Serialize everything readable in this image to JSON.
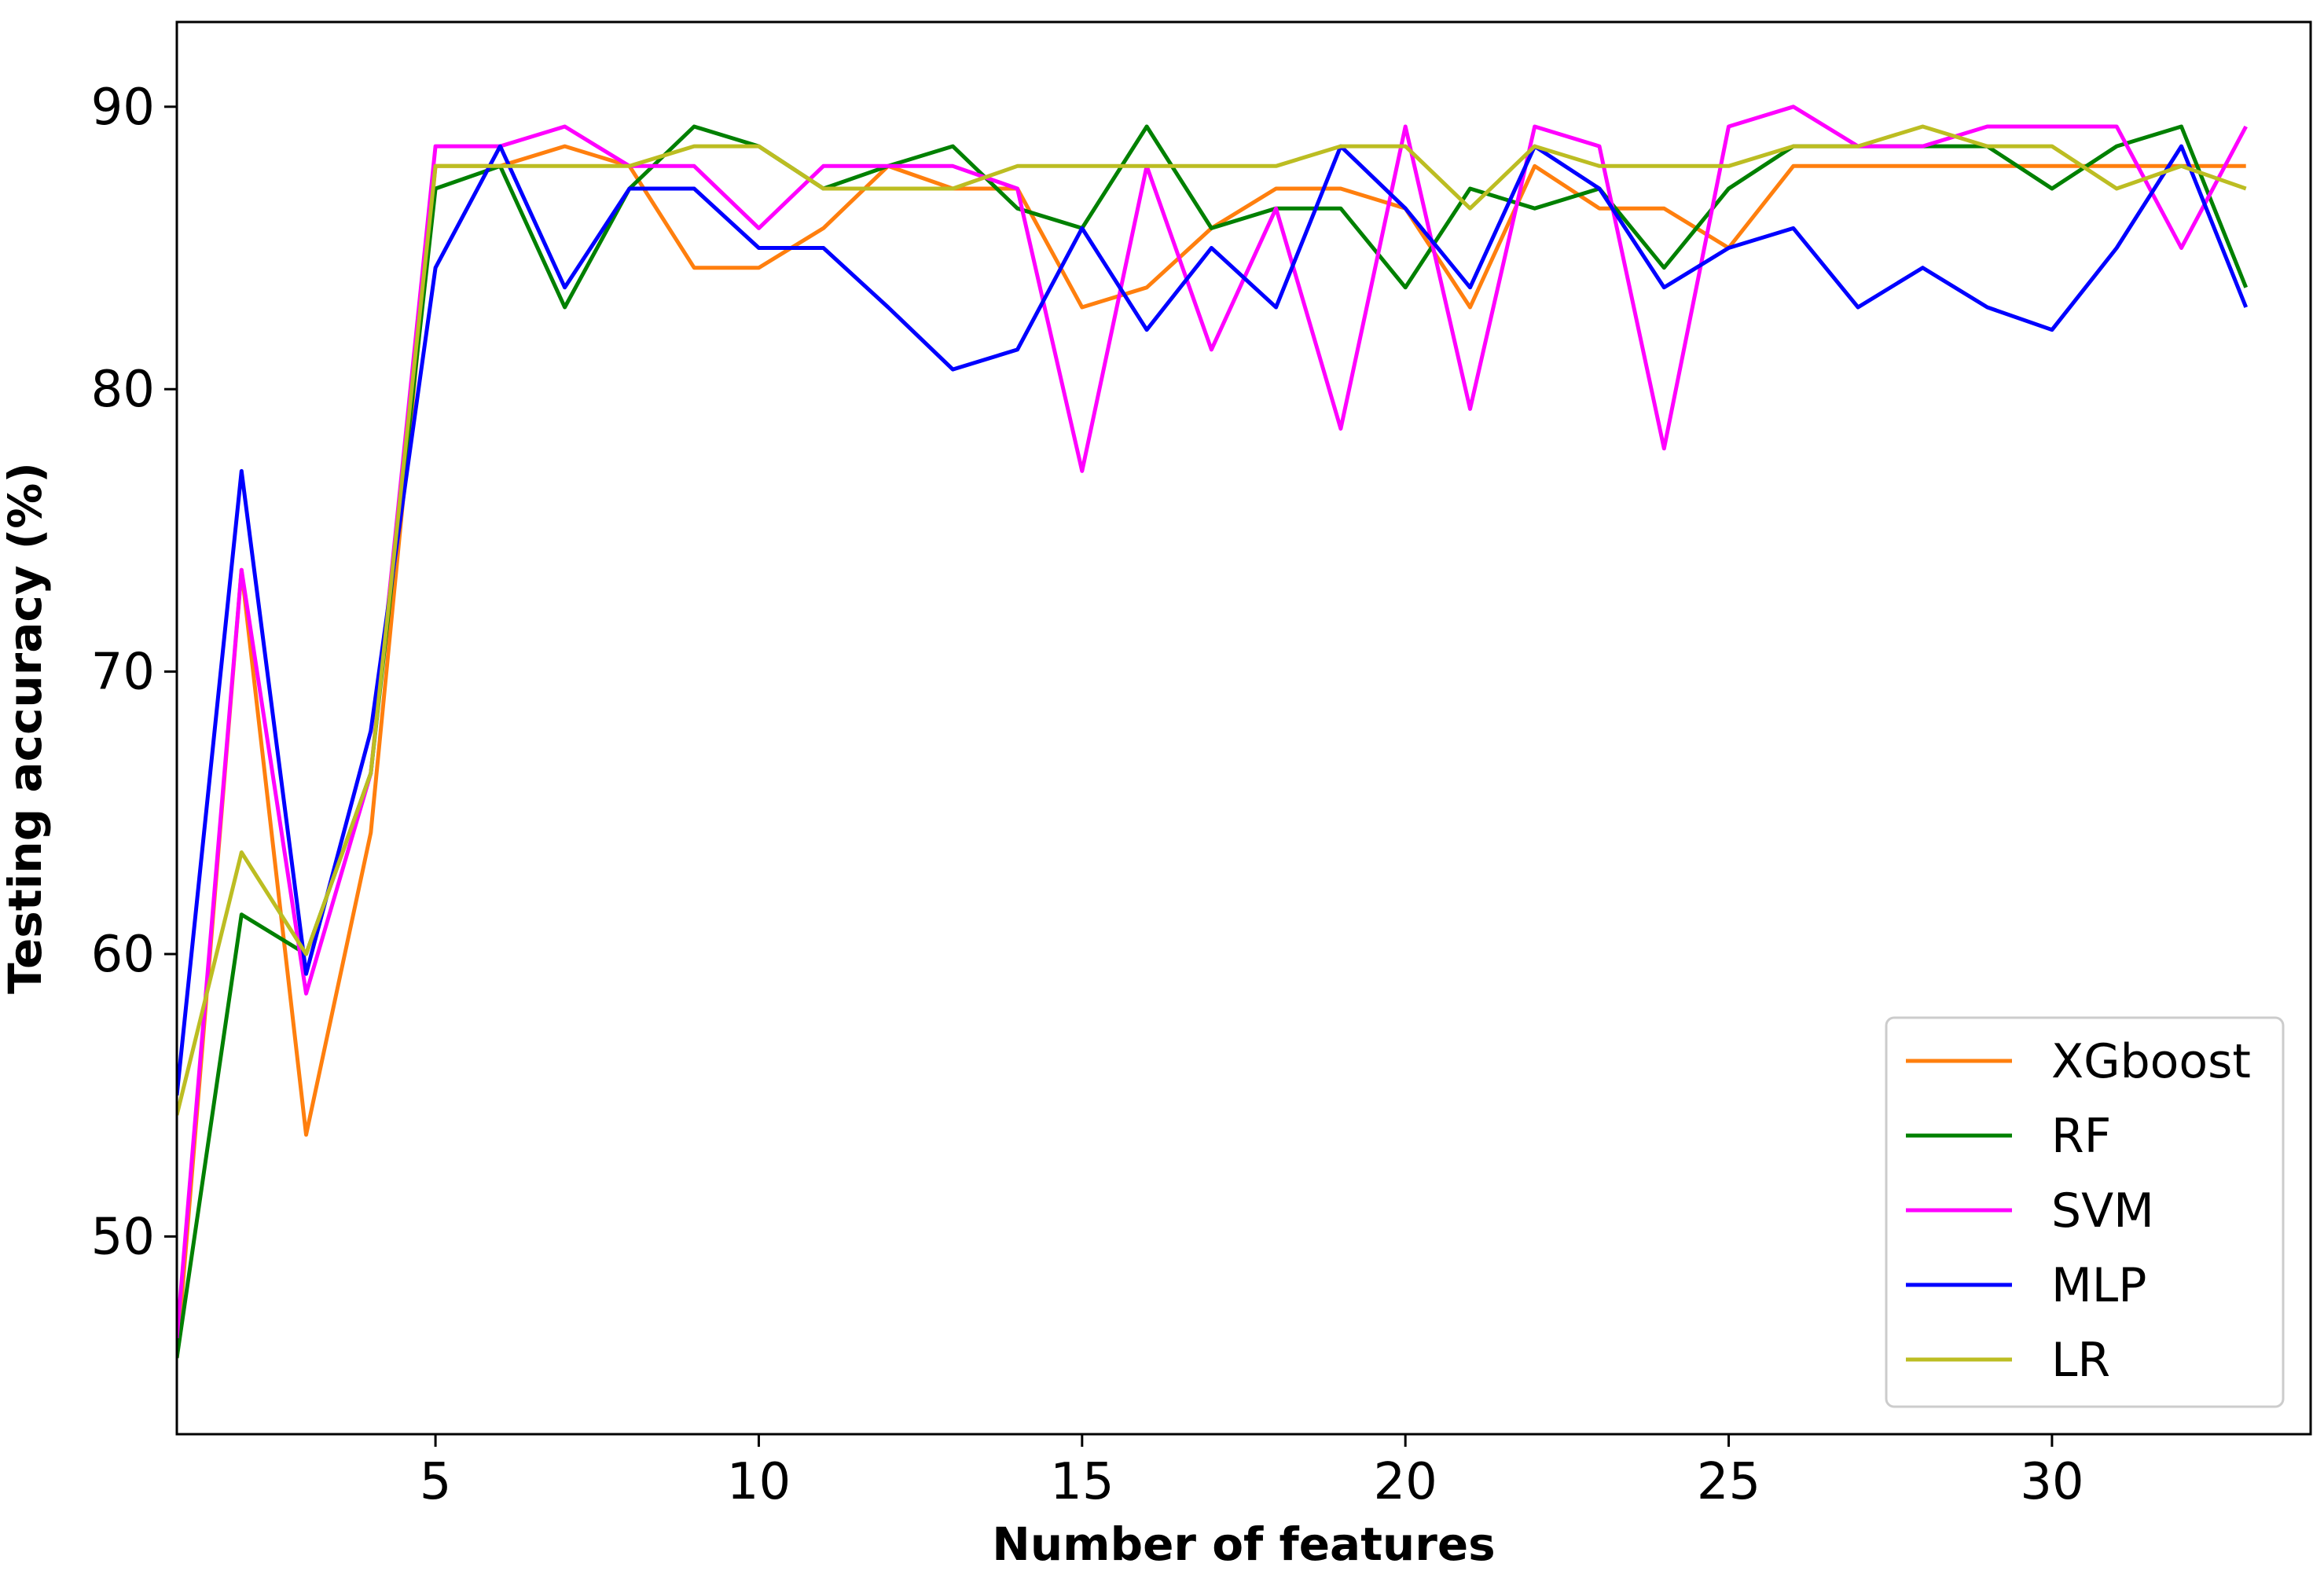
{
  "chart_data": {
    "type": "line",
    "title": "",
    "xlabel": "Number of features",
    "ylabel": "Testing accuracy (%)",
    "xlim": [
      1,
      34
    ],
    "ylim": [
      43,
      93
    ],
    "xticks": [
      5,
      10,
      15,
      20,
      25,
      30
    ],
    "yticks": [
      50,
      60,
      70,
      80,
      90
    ],
    "grid": false,
    "legend_position": "bottom-right",
    "x": [
      1,
      2,
      3,
      4,
      5,
      6,
      7,
      8,
      9,
      10,
      11,
      12,
      13,
      14,
      15,
      16,
      17,
      18,
      19,
      20,
      21,
      22,
      23,
      24,
      25,
      26,
      27,
      28,
      29,
      30,
      31,
      32,
      33
    ],
    "series": [
      {
        "name": "XGboost",
        "color": "#ff7f0e",
        "values": [
          45.7,
          73.6,
          53.6,
          64.3,
          87.9,
          87.9,
          88.6,
          87.9,
          84.3,
          84.3,
          85.7,
          87.9,
          87.1,
          87.1,
          82.9,
          83.6,
          85.7,
          87.1,
          87.1,
          86.4,
          82.9,
          87.9,
          86.4,
          86.4,
          85.0,
          87.9,
          87.9,
          87.9,
          87.9,
          87.9,
          87.9,
          87.9,
          87.9
        ]
      },
      {
        "name": "RF",
        "color": "#008000",
        "values": [
          45.7,
          61.4,
          60.0,
          66.4,
          87.1,
          87.9,
          82.9,
          87.1,
          89.3,
          88.6,
          87.1,
          87.9,
          88.6,
          86.4,
          85.7,
          89.3,
          85.7,
          86.4,
          86.4,
          83.6,
          87.1,
          86.4,
          87.1,
          84.3,
          87.1,
          88.6,
          88.6,
          88.6,
          88.6,
          87.1,
          88.6,
          89.3,
          83.6
        ]
      },
      {
        "name": "SVM",
        "color": "#ff00ff",
        "values": [
          46.4,
          73.6,
          58.6,
          66.4,
          88.6,
          88.6,
          89.3,
          87.9,
          87.9,
          85.7,
          87.9,
          87.9,
          87.9,
          87.1,
          77.1,
          87.9,
          81.4,
          86.4,
          78.6,
          89.3,
          79.3,
          89.3,
          88.6,
          77.9,
          89.3,
          90.0,
          88.6,
          88.6,
          89.3,
          89.3,
          89.3,
          85.0,
          89.3
        ]
      },
      {
        "name": "MLP",
        "color": "#0000ff",
        "values": [
          55.0,
          77.1,
          59.3,
          67.9,
          84.3,
          88.6,
          83.6,
          87.1,
          87.1,
          85.0,
          85.0,
          82.9,
          80.7,
          81.4,
          85.7,
          82.1,
          85.0,
          82.9,
          88.6,
          86.4,
          83.6,
          88.6,
          87.1,
          83.6,
          85.0,
          85.7,
          82.9,
          84.3,
          82.9,
          82.1,
          85.0,
          88.6,
          82.9
        ]
      },
      {
        "name": "LR",
        "color": "#bcbd22",
        "values": [
          54.3,
          63.6,
          60.0,
          66.4,
          87.9,
          87.9,
          87.9,
          87.9,
          88.6,
          88.6,
          87.1,
          87.1,
          87.1,
          87.9,
          87.9,
          87.9,
          87.9,
          87.9,
          88.6,
          88.6,
          86.4,
          88.6,
          87.9,
          87.9,
          87.9,
          88.6,
          88.6,
          89.3,
          88.6,
          88.6,
          87.1,
          87.9,
          87.1
        ]
      }
    ]
  }
}
